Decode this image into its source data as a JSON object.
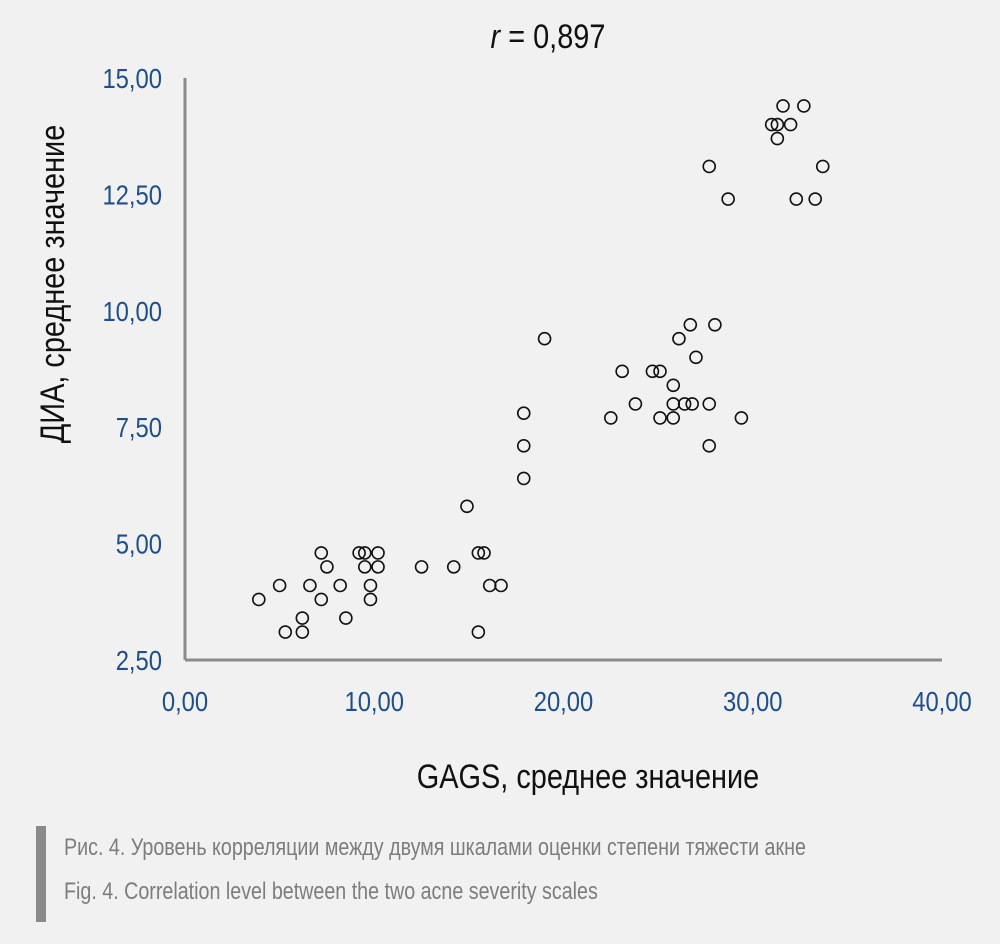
{
  "chart_data": {
    "type": "scatter",
    "title": "r = 0,897",
    "title_parts": {
      "italic": "r",
      "rest": " = 0,897"
    },
    "xlabel": "GAGS, среднее значение",
    "ylabel": "ДИА, среднее значение",
    "xlim": [
      0,
      40
    ],
    "ylim": [
      2.5,
      15
    ],
    "x_ticks": [
      "0,00",
      "10,00",
      "20,00",
      "30,00",
      "40,00"
    ],
    "x_tick_values": [
      0,
      10,
      20,
      30,
      40
    ],
    "y_ticks": [
      "2,50",
      "5,00",
      "7,50",
      "10,00",
      "12,50",
      "15,00"
    ],
    "y_tick_values": [
      2.5,
      5,
      7.5,
      10,
      12.5,
      15
    ],
    "grid": false,
    "marker": "open-circle",
    "colors": {
      "tick_labels": "#1d4f8a",
      "axis": "#8c8c8c",
      "text": "#111111"
    },
    "points": [
      {
        "x": 3.9,
        "y": 3.8
      },
      {
        "x": 5.0,
        "y": 4.1
      },
      {
        "x": 5.3,
        "y": 3.1
      },
      {
        "x": 6.2,
        "y": 3.1
      },
      {
        "x": 6.2,
        "y": 3.4
      },
      {
        "x": 6.6,
        "y": 4.1
      },
      {
        "x": 7.2,
        "y": 3.8
      },
      {
        "x": 7.2,
        "y": 4.8
      },
      {
        "x": 7.5,
        "y": 4.5
      },
      {
        "x": 8.2,
        "y": 4.1
      },
      {
        "x": 8.5,
        "y": 3.4
      },
      {
        "x": 9.2,
        "y": 4.8
      },
      {
        "x": 9.5,
        "y": 4.8
      },
      {
        "x": 9.5,
        "y": 4.5
      },
      {
        "x": 9.8,
        "y": 4.1
      },
      {
        "x": 9.8,
        "y": 3.8
      },
      {
        "x": 10.2,
        "y": 4.8
      },
      {
        "x": 10.2,
        "y": 4.5
      },
      {
        "x": 12.5,
        "y": 4.5
      },
      {
        "x": 14.2,
        "y": 4.5
      },
      {
        "x": 14.9,
        "y": 5.8
      },
      {
        "x": 15.5,
        "y": 4.8
      },
      {
        "x": 15.8,
        "y": 4.8
      },
      {
        "x": 16.1,
        "y": 4.1
      },
      {
        "x": 16.7,
        "y": 4.1
      },
      {
        "x": 15.5,
        "y": 3.1
      },
      {
        "x": 17.9,
        "y": 6.4
      },
      {
        "x": 17.9,
        "y": 7.1
      },
      {
        "x": 17.9,
        "y": 7.8
      },
      {
        "x": 19.0,
        "y": 9.4
      },
      {
        "x": 22.5,
        "y": 7.7
      },
      {
        "x": 23.1,
        "y": 8.7
      },
      {
        "x": 23.8,
        "y": 8.0
      },
      {
        "x": 24.7,
        "y": 8.7
      },
      {
        "x": 25.1,
        "y": 8.7
      },
      {
        "x": 25.1,
        "y": 7.7
      },
      {
        "x": 25.8,
        "y": 7.7
      },
      {
        "x": 25.8,
        "y": 8.4
      },
      {
        "x": 25.8,
        "y": 8.0
      },
      {
        "x": 26.1,
        "y": 9.4
      },
      {
        "x": 26.4,
        "y": 8.0
      },
      {
        "x": 26.8,
        "y": 8.0
      },
      {
        "x": 26.7,
        "y": 9.7
      },
      {
        "x": 27.0,
        "y": 9.0
      },
      {
        "x": 27.7,
        "y": 8.0
      },
      {
        "x": 27.7,
        "y": 7.1
      },
      {
        "x": 28.0,
        "y": 9.7
      },
      {
        "x": 29.4,
        "y": 7.7
      },
      {
        "x": 27.7,
        "y": 13.1
      },
      {
        "x": 28.7,
        "y": 12.4
      },
      {
        "x": 31.0,
        "y": 14.0
      },
      {
        "x": 31.3,
        "y": 14.0
      },
      {
        "x": 31.3,
        "y": 13.7
      },
      {
        "x": 31.6,
        "y": 14.4
      },
      {
        "x": 32.0,
        "y": 14.0
      },
      {
        "x": 32.3,
        "y": 12.4
      },
      {
        "x": 32.7,
        "y": 14.4
      },
      {
        "x": 33.3,
        "y": 12.4
      },
      {
        "x": 33.7,
        "y": 13.1
      }
    ]
  },
  "caption": {
    "ru": "Рис. 4. Уровень корреляции между двумя шкалами оценки степени тяжести акне",
    "en": "Fig. 4. Correlation level between the two acne severity scales"
  }
}
